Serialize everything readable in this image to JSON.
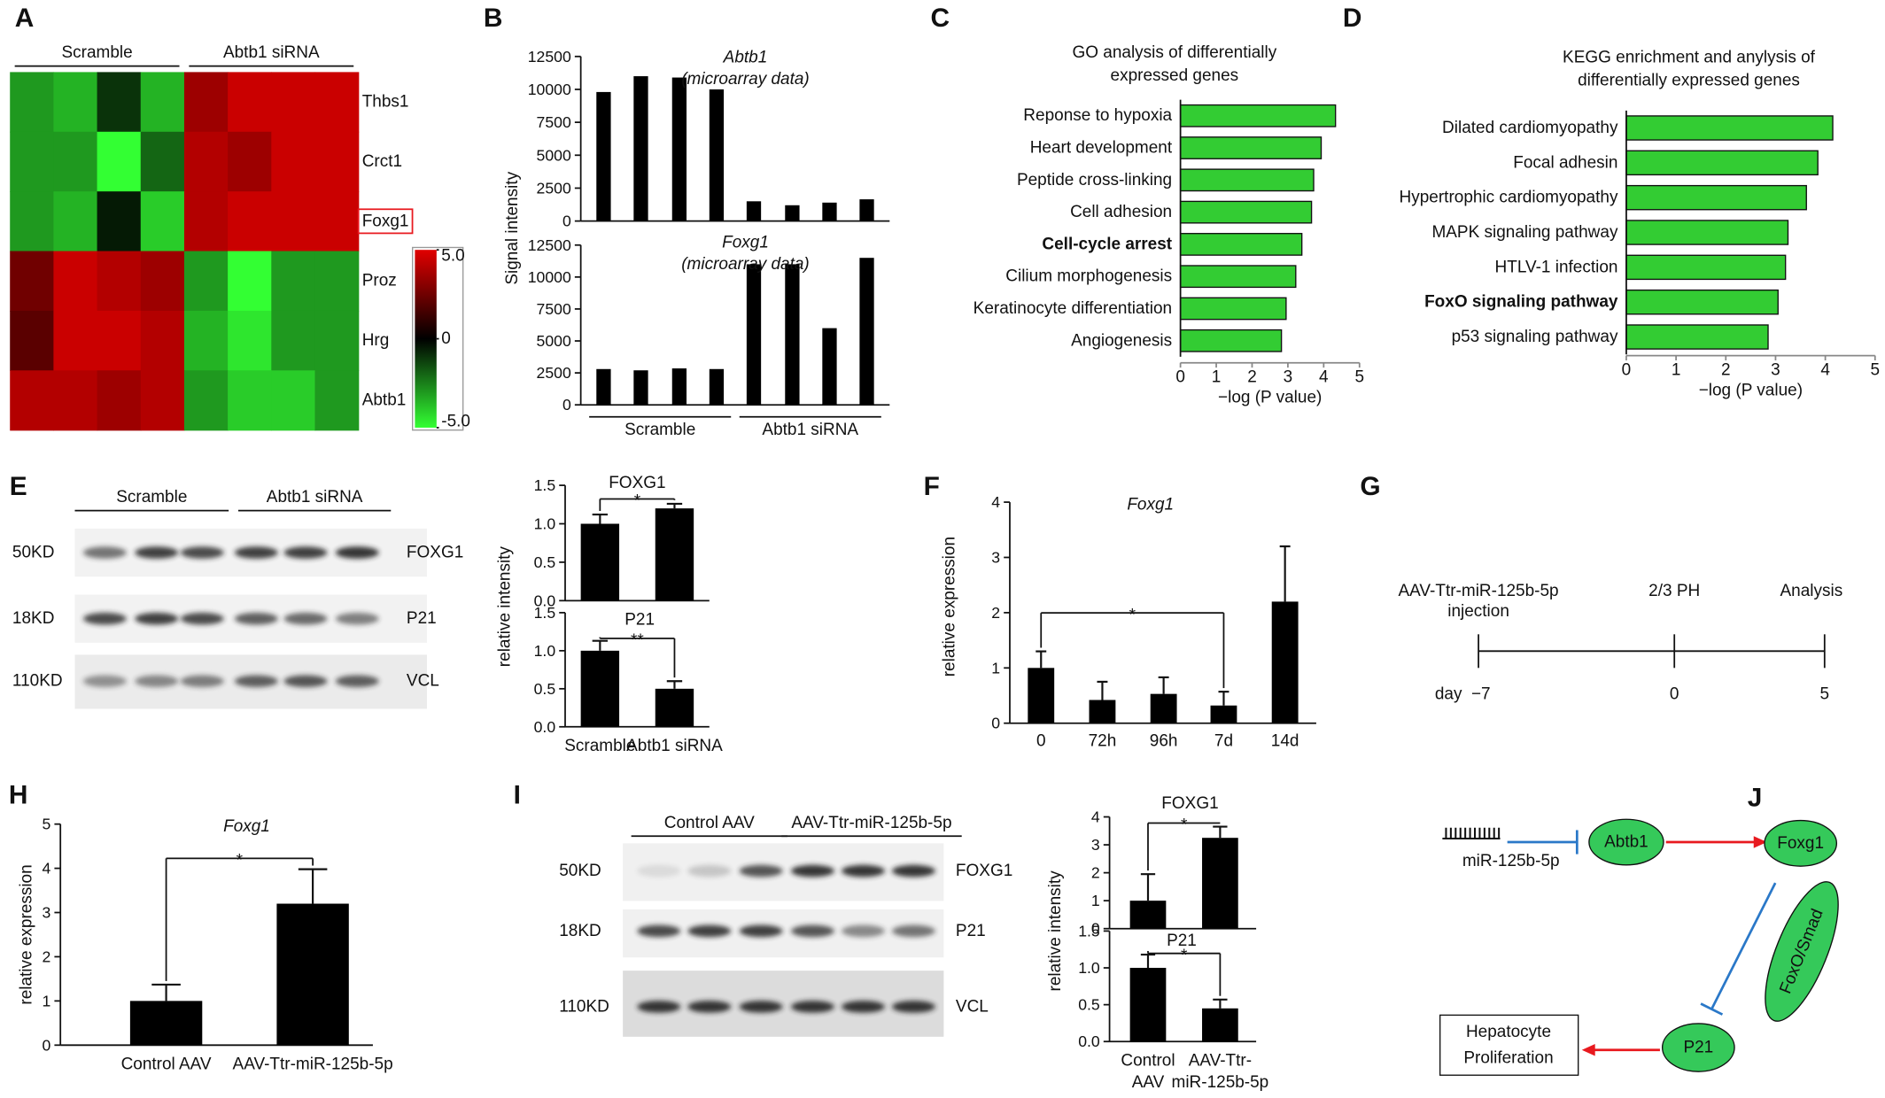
{
  "panels": [
    "A",
    "B",
    "C",
    "D",
    "E",
    "F",
    "G",
    "H",
    "I",
    "J"
  ],
  "chart_data": [
    {
      "type": "heatmap",
      "column_groups": [
        "Scramble",
        "Abtb1 siRNA"
      ],
      "rows": [
        "Thbs1",
        "Crct1",
        "Foxg1",
        "Proz",
        "Hrg",
        "Abtb1"
      ],
      "row_label_boxes": [
        false,
        false,
        true,
        false,
        false,
        false
      ],
      "values": [
        [
          -3,
          -3.5,
          -1,
          -3.5,
          3.5,
          4.5,
          4.5,
          4.5
        ],
        [
          -3,
          -3,
          -5,
          -2,
          4,
          3.5,
          4.5,
          4.5
        ],
        [
          -3,
          -3.5,
          -0.5,
          -4,
          4,
          4.5,
          4.5,
          4.5
        ],
        [
          2.5,
          4.5,
          4,
          3.5,
          -3,
          -5,
          -3,
          -3
        ],
        [
          2,
          4.5,
          4.5,
          4,
          -3.5,
          -4.5,
          -3,
          -3
        ],
        [
          4,
          4,
          3.5,
          4,
          -3,
          -4,
          -4,
          -3
        ]
      ],
      "colorscale": [
        "#33ff33",
        "#000000",
        "#e00000"
      ],
      "zlim": [
        -5,
        5
      ],
      "colorbar_ticks": [
        {
          "value": 5,
          "label": "5.0"
        },
        0,
        {
          "value": -5,
          "label": "-5.0"
        }
      ]
    },
    {
      "type": "bar",
      "title": "Abtb1",
      "subtitle": "(microarray data)",
      "title_italic": true,
      "y_label": "Signal intensity",
      "values": [
        9800,
        11000,
        10900,
        10000,
        1500,
        1200,
        1400,
        1650
      ],
      "color": "#000000",
      "ylim": [
        0,
        12500
      ],
      "yticks": [
        0,
        2500,
        5000,
        7500,
        10000,
        12500
      ]
    },
    {
      "type": "bar",
      "title": "Foxg1",
      "subtitle": "(microarray data)",
      "title_italic": true,
      "groups": [
        "Scramble",
        "Abtb1 siRNA"
      ],
      "values": [
        2800,
        2700,
        2850,
        2800,
        11000,
        11000,
        6000,
        11500
      ],
      "color": "#000000",
      "ylim": [
        0,
        12500
      ],
      "yticks": [
        0,
        2500,
        5000,
        7500,
        10000,
        12500
      ]
    },
    {
      "type": "barh",
      "title": [
        "GO analysis of differentially",
        "expressed genes"
      ],
      "categories": [
        "Reponse to hypoxia",
        "Heart development",
        "Peptide cross-linking",
        "Cell adhesion",
        "Cell-cycle arrest",
        "Cilium morphogenesis",
        "Keratinocyte differentiation",
        "Angiogenesis"
      ],
      "label_colors": [
        "#111111",
        "#111111",
        "#111111",
        "#111111",
        "#e8191f",
        "#111111",
        "#111111",
        "#111111"
      ],
      "values": [
        4.33,
        3.93,
        3.72,
        3.66,
        3.39,
        3.22,
        2.95,
        2.82
      ],
      "color": "#33cc33",
      "xlim": [
        0,
        5
      ],
      "xticks": [
        0,
        1,
        2,
        3,
        4,
        5
      ],
      "x_label": "−log (P value)"
    },
    {
      "type": "barh",
      "title": [
        "KEGG enrichment and anylysis of",
        "differentially expressed genes"
      ],
      "categories": [
        "Dilated cardiomyopathy",
        "Focal adhesin",
        "Hypertrophic cardiomyopathy",
        "MAPK signaling pathway",
        "HTLV-1 infection",
        "FoxO signaling pathway",
        "p53 signaling pathway"
      ],
      "label_colors": [
        "#111111",
        "#111111",
        "#111111",
        "#111111",
        "#111111",
        "#e8191f",
        "#111111"
      ],
      "values": [
        4.15,
        3.85,
        3.62,
        3.25,
        3.2,
        3.05,
        2.85
      ],
      "color": "#33cc33",
      "xlim": [
        0,
        5
      ],
      "xticks": [
        0,
        1,
        2,
        3,
        4,
        5
      ],
      "x_label": "−log (P value)"
    },
    {
      "type": "bar",
      "title": "FOXG1",
      "y_label": "relative intensity",
      "values": [
        1.0,
        1.2
      ],
      "errors": [
        0.12,
        0.06
      ],
      "color": "#000000",
      "ylim": [
        0,
        1.5
      ],
      "yticks": [
        {
          "value": 0,
          "label": "0.0"
        },
        0.5,
        {
          "value": 1,
          "label": "1.0"
        },
        1.5
      ],
      "annotations": [
        {
          "text": "*",
          "from": 0,
          "to": 1
        }
      ]
    },
    {
      "type": "bar",
      "title": "P21",
      "categories": [
        "Scramble",
        "Abtb1 siRNA"
      ],
      "values": [
        1.0,
        0.5
      ],
      "errors": [
        0.13,
        0.1
      ],
      "color": "#000000",
      "ylim": [
        0,
        1.5
      ],
      "yticks": [
        {
          "value": 0,
          "label": "0.0"
        },
        0.5,
        {
          "value": 1,
          "label": "1.0"
        },
        1.5
      ],
      "annotations": [
        {
          "text": "**",
          "from": 0,
          "to": 1
        }
      ]
    },
    {
      "type": "bar",
      "title": "Foxg1",
      "title_italic": true,
      "y_label": "relative expression",
      "categories": [
        "0",
        "72h",
        "96h",
        "7d",
        "14d"
      ],
      "values": [
        1.0,
        0.42,
        0.53,
        0.32,
        2.2
      ],
      "errors": [
        0.3,
        0.33,
        0.3,
        0.25,
        1.0
      ],
      "color": "#000000",
      "ylim": [
        0,
        4
      ],
      "yticks": [
        0,
        1,
        2,
        3,
        4
      ],
      "annotations": [
        {
          "text": "*",
          "from": 0,
          "to": 3
        }
      ]
    },
    {
      "type": "bar",
      "title": "Foxg1",
      "title_italic": true,
      "y_label": "relative expression",
      "categories": [
        "Control AAV",
        "AAV-Ttr-miR-125b-5p"
      ],
      "values": [
        1.0,
        3.2
      ],
      "errors": [
        0.37,
        0.78
      ],
      "color": "#000000",
      "ylim": [
        0,
        5
      ],
      "yticks": [
        0,
        1,
        2,
        3,
        4,
        5
      ],
      "annotations": [
        {
          "text": "*",
          "from": 0,
          "to": 1
        }
      ]
    },
    {
      "type": "bar",
      "title": "FOXG1",
      "y_label": "relative intensity",
      "values": [
        1.0,
        3.25
      ],
      "errors": [
        0.95,
        0.4
      ],
      "color": "#000000",
      "ylim": [
        0,
        4
      ],
      "yticks": [
        0,
        1,
        2,
        3,
        4
      ],
      "annotations": [
        {
          "text": "*",
          "from": 0,
          "to": 1
        }
      ]
    },
    {
      "type": "bar",
      "title": "P21",
      "categories": [
        [
          "Control",
          "AAV"
        ],
        [
          "AAV-Ttr-",
          "miR-125b-5p"
        ]
      ],
      "values": [
        1.0,
        0.45
      ],
      "errors": [
        0.18,
        0.12
      ],
      "color": "#000000",
      "ylim": [
        0,
        1.5
      ],
      "yticks": [
        {
          "value": 0,
          "label": "0.0"
        },
        0.5,
        {
          "value": 1,
          "label": "1.0"
        },
        1.5
      ],
      "annotations": [
        {
          "text": "*",
          "from": 0,
          "to": 1
        }
      ]
    }
  ],
  "blot_E": {
    "groups": [
      "Scramble",
      "Abtb1 siRNA"
    ],
    "rows": [
      {
        "size": "50KD",
        "name": "FOXG1"
      },
      {
        "size": "18KD",
        "name": "P21"
      },
      {
        "size": "110KD",
        "name": "VCL"
      }
    ]
  },
  "blot_I": {
    "groups": [
      "Control AAV",
      "AAV-Ttr-miR-125b-5p"
    ],
    "rows": [
      {
        "size": "50KD",
        "name": "FOXG1"
      },
      {
        "size": "18KD",
        "name": "P21"
      },
      {
        "size": "110KD",
        "name": "VCL"
      }
    ]
  },
  "timeline_G": {
    "axis_label": "day",
    "events": [
      {
        "label": [
          "AAV-Ttr-miR-125b-5p",
          "injection"
        ],
        "day": "−7"
      },
      {
        "label": [
          "2/3 PH"
        ],
        "day": "0"
      },
      {
        "label": [
          "Analysis"
        ],
        "day": "5"
      }
    ]
  },
  "diagram_J": {
    "mirna": "miR-125b-5p",
    "abtb1": "Abtb1",
    "foxg1": "Foxg1",
    "foxo": "FoxO/Smad",
    "p21": "P21",
    "outcome": [
      "Hepatocyte",
      "Proliferation"
    ]
  }
}
